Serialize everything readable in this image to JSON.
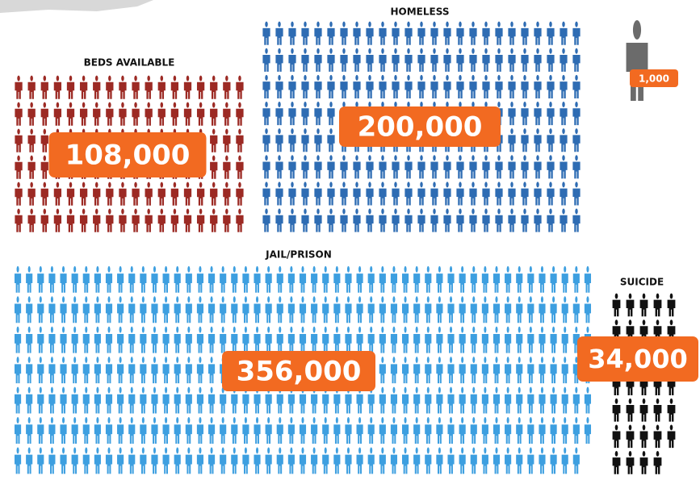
{
  "chart_data": {
    "type": "pictogram",
    "categories": [
      "BEDS AVAILABLE",
      "HOMELESS",
      "JAIL/PRISON",
      "SUICIDE"
    ],
    "values": [
      108000,
      200000,
      356000,
      34000
    ],
    "value_labels": [
      "108,000",
      "200,000",
      "356,000",
      "34,000"
    ],
    "colors": [
      "#9c2a24",
      "#2e6cb3",
      "#3d9fe0",
      "#111111"
    ],
    "unit": {
      "value": 1000,
      "label": "1,000"
    },
    "unit_color": "#6b6b6b",
    "badge_color": "#f26a21"
  }
}
